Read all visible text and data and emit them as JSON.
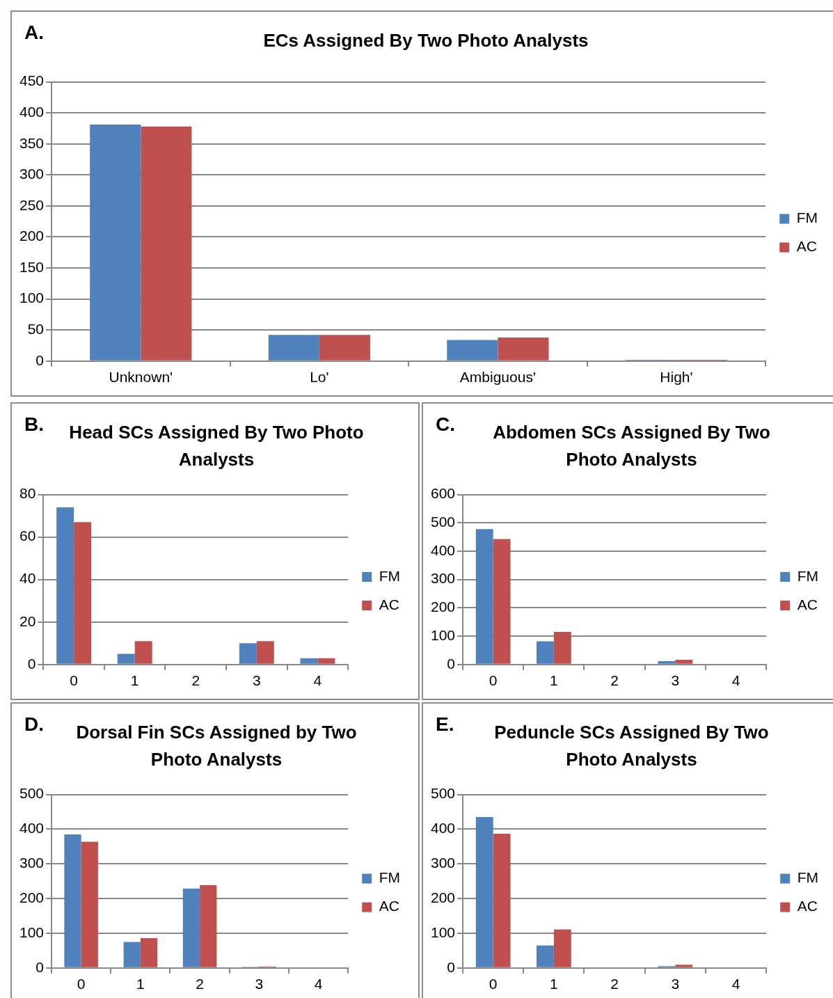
{
  "chart_data": [
    {
      "type": "bar",
      "title": "ECs Assigned By Two Photo Analysts",
      "annotations": [
        "A."
      ],
      "categories": [
        "Unknown'",
        "Lo'",
        "Ambiguous'",
        "High'"
      ],
      "series": [
        {
          "name": "FM",
          "color": "#4f81bd",
          "values": [
            381,
            42,
            34,
            2
          ]
        },
        {
          "name": "AC",
          "color": "#c0504d",
          "values": [
            378,
            42,
            38,
            2
          ]
        }
      ],
      "ylim": [
        0,
        450
      ],
      "yticks": [
        0,
        50,
        100,
        150,
        200,
        250,
        300,
        350,
        400,
        450
      ],
      "grid": "y",
      "legend": "right"
    },
    {
      "type": "bar",
      "title": "Head SCs Assigned By Two Photo Analysts",
      "annotations": [
        "B."
      ],
      "categories": [
        "0",
        "1",
        "2",
        "3",
        "4"
      ],
      "series": [
        {
          "name": "FM",
          "color": "#4f81bd",
          "values": [
            74,
            5,
            0,
            10,
            3
          ]
        },
        {
          "name": "AC",
          "color": "#c0504d",
          "values": [
            67,
            11,
            0,
            11,
            3
          ]
        }
      ],
      "ylim": [
        0,
        80
      ],
      "yticks": [
        0,
        20,
        40,
        60,
        80
      ],
      "grid": "y",
      "legend": "right"
    },
    {
      "type": "bar",
      "title": "Abdomen SCs Assigned By Two Photo Analysts",
      "annotations": [
        "C."
      ],
      "categories": [
        "0",
        "1",
        "2",
        "3",
        "4"
      ],
      "series": [
        {
          "name": "FM",
          "color": "#4f81bd",
          "values": [
            478,
            82,
            null,
            12,
            0
          ]
        },
        {
          "name": "AC",
          "color": "#c0504d",
          "values": [
            443,
            115,
            0,
            17,
            0
          ]
        }
      ],
      "ylim": [
        0,
        600
      ],
      "yticks": [
        0,
        100,
        200,
        300,
        400,
        500,
        600
      ],
      "grid": "y",
      "legend": "right"
    },
    {
      "type": "bar",
      "title": "Dorsal Fin SCs Assigned by Two Photo Analysts",
      "annotations": [
        "D."
      ],
      "categories": [
        "0",
        "1",
        "2",
        "3",
        "4"
      ],
      "series": [
        {
          "name": "FM",
          "color": "#4f81bd",
          "values": [
            385,
            75,
            229,
            3,
            0
          ]
        },
        {
          "name": "AC",
          "color": "#c0504d",
          "values": [
            364,
            86,
            239,
            4,
            0
          ]
        }
      ],
      "ylim": [
        0,
        500
      ],
      "yticks": [
        0,
        100,
        200,
        300,
        400,
        500
      ],
      "grid": "y",
      "legend": "right"
    },
    {
      "type": "bar",
      "title": "Peduncle SCs Assigned By Two Photo Analysts",
      "annotations": [
        "E."
      ],
      "categories": [
        "0",
        "1",
        "2",
        "3",
        "4"
      ],
      "series": [
        {
          "name": "FM",
          "color": "#4f81bd",
          "values": [
            435,
            65,
            2,
            5,
            0
          ]
        },
        {
          "name": "AC",
          "color": "#c0504d",
          "values": [
            387,
            111,
            null,
            9,
            0
          ]
        }
      ],
      "ylim": [
        0,
        500
      ],
      "yticks": [
        0,
        100,
        200,
        300,
        400,
        500
      ],
      "grid": "y",
      "legend": "right"
    }
  ]
}
